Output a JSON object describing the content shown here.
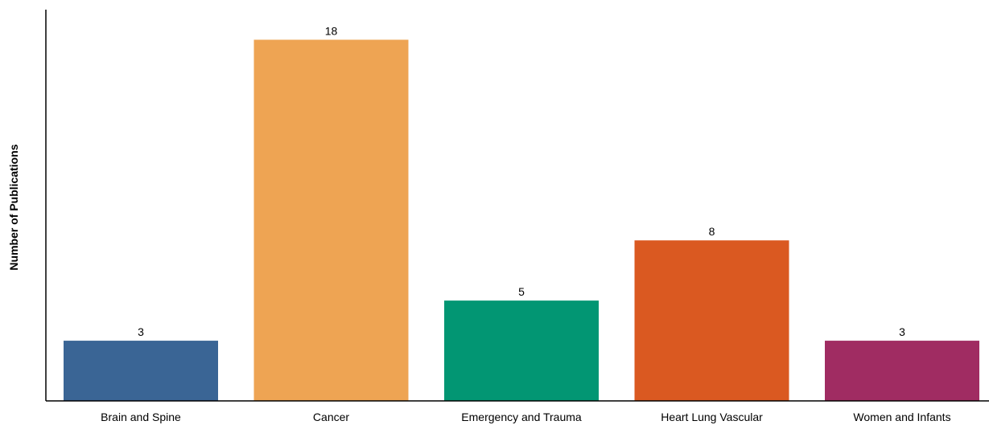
{
  "chart_data": {
    "type": "bar",
    "title": "",
    "xlabel": "",
    "ylabel": "Number of Publications",
    "categories": [
      "Brain and Spine",
      "Cancer",
      "Emergency and Trauma",
      "Heart Lung Vascular",
      "Women and Infants"
    ],
    "values": [
      3,
      18,
      5,
      8,
      3
    ],
    "colors": [
      "#3a6595",
      "#eea453",
      "#029673",
      "#da5921",
      "#a02c62"
    ],
    "ylim": [
      0,
      19.5
    ],
    "grid": false,
    "legend": "none",
    "show_y_ticks": false
  }
}
